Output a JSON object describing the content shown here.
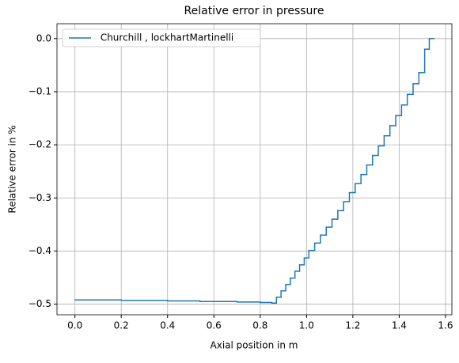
{
  "chart_data": {
    "type": "step",
    "title": "Relative error in pressure",
    "xlabel": "Axial position in m",
    "ylabel": "Relative error in %",
    "x": [
      0.0,
      0.2,
      0.4,
      0.54,
      0.7,
      0.8,
      0.85,
      0.87,
      0.89,
      0.91,
      0.93,
      0.95,
      0.97,
      0.99,
      1.01,
      1.035,
      1.06,
      1.085,
      1.11,
      1.135,
      1.16,
      1.185,
      1.21,
      1.235,
      1.26,
      1.285,
      1.31,
      1.335,
      1.36,
      1.385,
      1.41,
      1.435,
      1.46,
      1.485,
      1.51,
      1.53,
      1.55
    ],
    "series": [
      {
        "name": " Churchill , lockhartMartinelli",
        "color": "#1f77b4",
        "values": [
          -0.492,
          -0.493,
          -0.494,
          -0.495,
          -0.496,
          -0.497,
          -0.498,
          -0.487,
          -0.475,
          -0.463,
          -0.451,
          -0.438,
          -0.426,
          -0.413,
          -0.399,
          -0.385,
          -0.37,
          -0.355,
          -0.34,
          -0.324,
          -0.307,
          -0.29,
          -0.273,
          -0.256,
          -0.238,
          -0.22,
          -0.202,
          -0.183,
          -0.164,
          -0.145,
          -0.125,
          -0.105,
          -0.085,
          -0.064,
          -0.02,
          0.0,
          0.0
        ]
      }
    ],
    "xlim": [
      -0.0775,
      1.6275
    ],
    "ylim": [
      -0.52,
      0.028
    ],
    "xticks": [
      {
        "value": 0.0,
        "label": "0.0"
      },
      {
        "value": 0.2,
        "label": "0.2"
      },
      {
        "value": 0.4,
        "label": "0.4"
      },
      {
        "value": 0.6,
        "label": "0.6"
      },
      {
        "value": 0.8,
        "label": "0.8"
      },
      {
        "value": 1.0,
        "label": "1.0"
      },
      {
        "value": 1.2,
        "label": "1.2"
      },
      {
        "value": 1.4,
        "label": "1.4"
      },
      {
        "value": 1.6,
        "label": "1.6"
      }
    ],
    "yticks": [
      {
        "value": 0.0,
        "label": "0.0"
      },
      {
        "value": -0.1,
        "label": "−0.1"
      },
      {
        "value": -0.2,
        "label": "−0.2"
      },
      {
        "value": -0.3,
        "label": "−0.3"
      },
      {
        "value": -0.4,
        "label": "−0.4"
      },
      {
        "value": -0.5,
        "label": "−0.5"
      }
    ],
    "grid": true,
    "legend": "upper left"
  }
}
